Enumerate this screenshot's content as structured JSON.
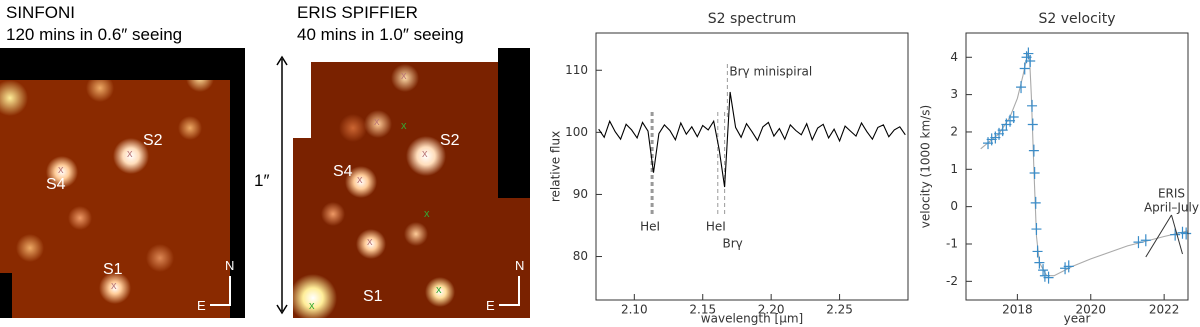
{
  "images": [
    {
      "title": "SINFONI",
      "subtitle": "120 mins in 0.6″ seeing",
      "sources": [
        "S2",
        "S4",
        "S1"
      ],
      "compass": [
        "N",
        "E"
      ]
    },
    {
      "title": "ERIS SPIFFIER",
      "subtitle": "40 mins in 1.0″ seeing",
      "scale": "1″",
      "sources": [
        "S2",
        "S4",
        "S1"
      ],
      "compass": [
        "N",
        "E"
      ]
    }
  ],
  "chart_data": [
    {
      "type": "line",
      "title": "S2 spectrum",
      "xlabel": "wavelength [μm]",
      "ylabel": "relative flux",
      "xlim": [
        2.072,
        2.3
      ],
      "ylim": [
        73,
        116
      ],
      "xticks": [
        {
          "value": 2.1,
          "label": "2.10"
        },
        {
          "value": 2.15,
          "label": "2.15"
        },
        {
          "value": 2.2,
          "label": "2.20"
        },
        {
          "value": 2.25,
          "label": "2.25"
        }
      ],
      "yticks": [
        80,
        90,
        100,
        110
      ],
      "series": [
        {
          "color": "#000000",
          "x": [
            2.074,
            2.078,
            2.082,
            2.086,
            2.09,
            2.094,
            2.098,
            2.102,
            2.106,
            2.11,
            2.114,
            2.118,
            2.122,
            2.126,
            2.13,
            2.134,
            2.138,
            2.142,
            2.146,
            2.15,
            2.154,
            2.158,
            2.162,
            2.166,
            2.17,
            2.174,
            2.178,
            2.182,
            2.186,
            2.19,
            2.194,
            2.198,
            2.202,
            2.206,
            2.21,
            2.214,
            2.218,
            2.222,
            2.226,
            2.23,
            2.234,
            2.238,
            2.242,
            2.246,
            2.25,
            2.254,
            2.258,
            2.262,
            2.266,
            2.27,
            2.274,
            2.278,
            2.282,
            2.286,
            2.29,
            2.294,
            2.298
          ],
          "values": [
            100.5,
            99.2,
            101.8,
            100.1,
            98.9,
            101.3,
            100.4,
            99.1,
            101.6,
            100.2,
            93.5,
            99.8,
            101.2,
            100.3,
            98.8,
            101.5,
            99.7,
            100.9,
            99.3,
            101.1,
            100.4,
            101.8,
            97.2,
            91.2,
            106.5,
            100.8,
            99.2,
            101.4,
            100.1,
            98.7,
            100.9,
            101.6,
            99.4,
            100.6,
            98.9,
            101.2,
            100.3,
            99.6,
            101.4,
            98.8,
            100.7,
            101.3,
            99.1,
            100.5,
            98.6,
            101.0,
            100.2,
            99.4,
            101.5,
            100.1,
            98.9,
            100.8,
            101.2,
            99.3,
            100.4,
            100.9,
            99.6
          ]
        }
      ],
      "annotations": [
        {
          "text": "HeI",
          "x": 2.113,
          "position": "bottom"
        },
        {
          "text": "HeI",
          "x": 2.161,
          "position": "bottom"
        },
        {
          "text": "Brγ",
          "x": 2.166,
          "position": "bottom"
        },
        {
          "text": "Brγ minispiral",
          "x": 2.168,
          "position": "top"
        }
      ]
    },
    {
      "type": "scatter",
      "title": "S2 velocity",
      "xlabel": "year",
      "ylabel": "velocity (1000 km/s)",
      "xlim": [
        2016.6,
        2022.65
      ],
      "ylim": [
        -2.5,
        4.65
      ],
      "xticks": [
        2018,
        2020,
        2022
      ],
      "yticks": [
        -2,
        -1,
        0,
        1,
        2,
        3,
        4
      ],
      "series": [
        {
          "type": "line",
          "color": "#aaaaaa",
          "x": [
            2017.0,
            2017.5,
            2017.8,
            2018.0,
            2018.15,
            2018.28,
            2018.33,
            2018.38,
            2018.45,
            2018.52,
            2018.6,
            2018.8,
            2019.0,
            2019.5,
            2020.0,
            2021.0,
            2022.0,
            2022.65
          ],
          "values": [
            1.55,
            1.95,
            2.4,
            2.9,
            3.5,
            4.1,
            4.0,
            3.0,
            1.0,
            -0.8,
            -1.5,
            -1.85,
            -1.85,
            -1.6,
            -1.4,
            -1.05,
            -0.8,
            -0.65
          ]
        },
        {
          "type": "scatter",
          "color": "#3a8cc8",
          "x": [
            2017.2,
            2017.3,
            2017.4,
            2017.5,
            2017.6,
            2017.7,
            2017.8,
            2017.9,
            2018.1,
            2018.2,
            2018.25,
            2018.3,
            2018.35,
            2018.4,
            2018.42,
            2018.45,
            2018.47,
            2018.5,
            2018.52,
            2018.55,
            2018.6,
            2018.7,
            2018.75,
            2018.85,
            2019.3,
            2019.4,
            2021.3,
            2021.5,
            2022.3,
            2022.5,
            2022.6
          ],
          "values": [
            1.7,
            1.8,
            1.85,
            1.95,
            2.05,
            2.2,
            2.3,
            2.4,
            3.2,
            3.7,
            4.0,
            4.1,
            3.9,
            2.7,
            2.2,
            1.5,
            0.9,
            0.1,
            -0.6,
            -1.2,
            -1.5,
            -1.7,
            -1.85,
            -1.9,
            -1.65,
            -1.6,
            -0.95,
            -0.9,
            -0.75,
            -0.7,
            -0.72
          ]
        }
      ],
      "annotations": [
        {
          "text": "ERIS",
          "x": 2022.2
        },
        {
          "text": "April–July",
          "x": 2022.2
        }
      ]
    }
  ]
}
